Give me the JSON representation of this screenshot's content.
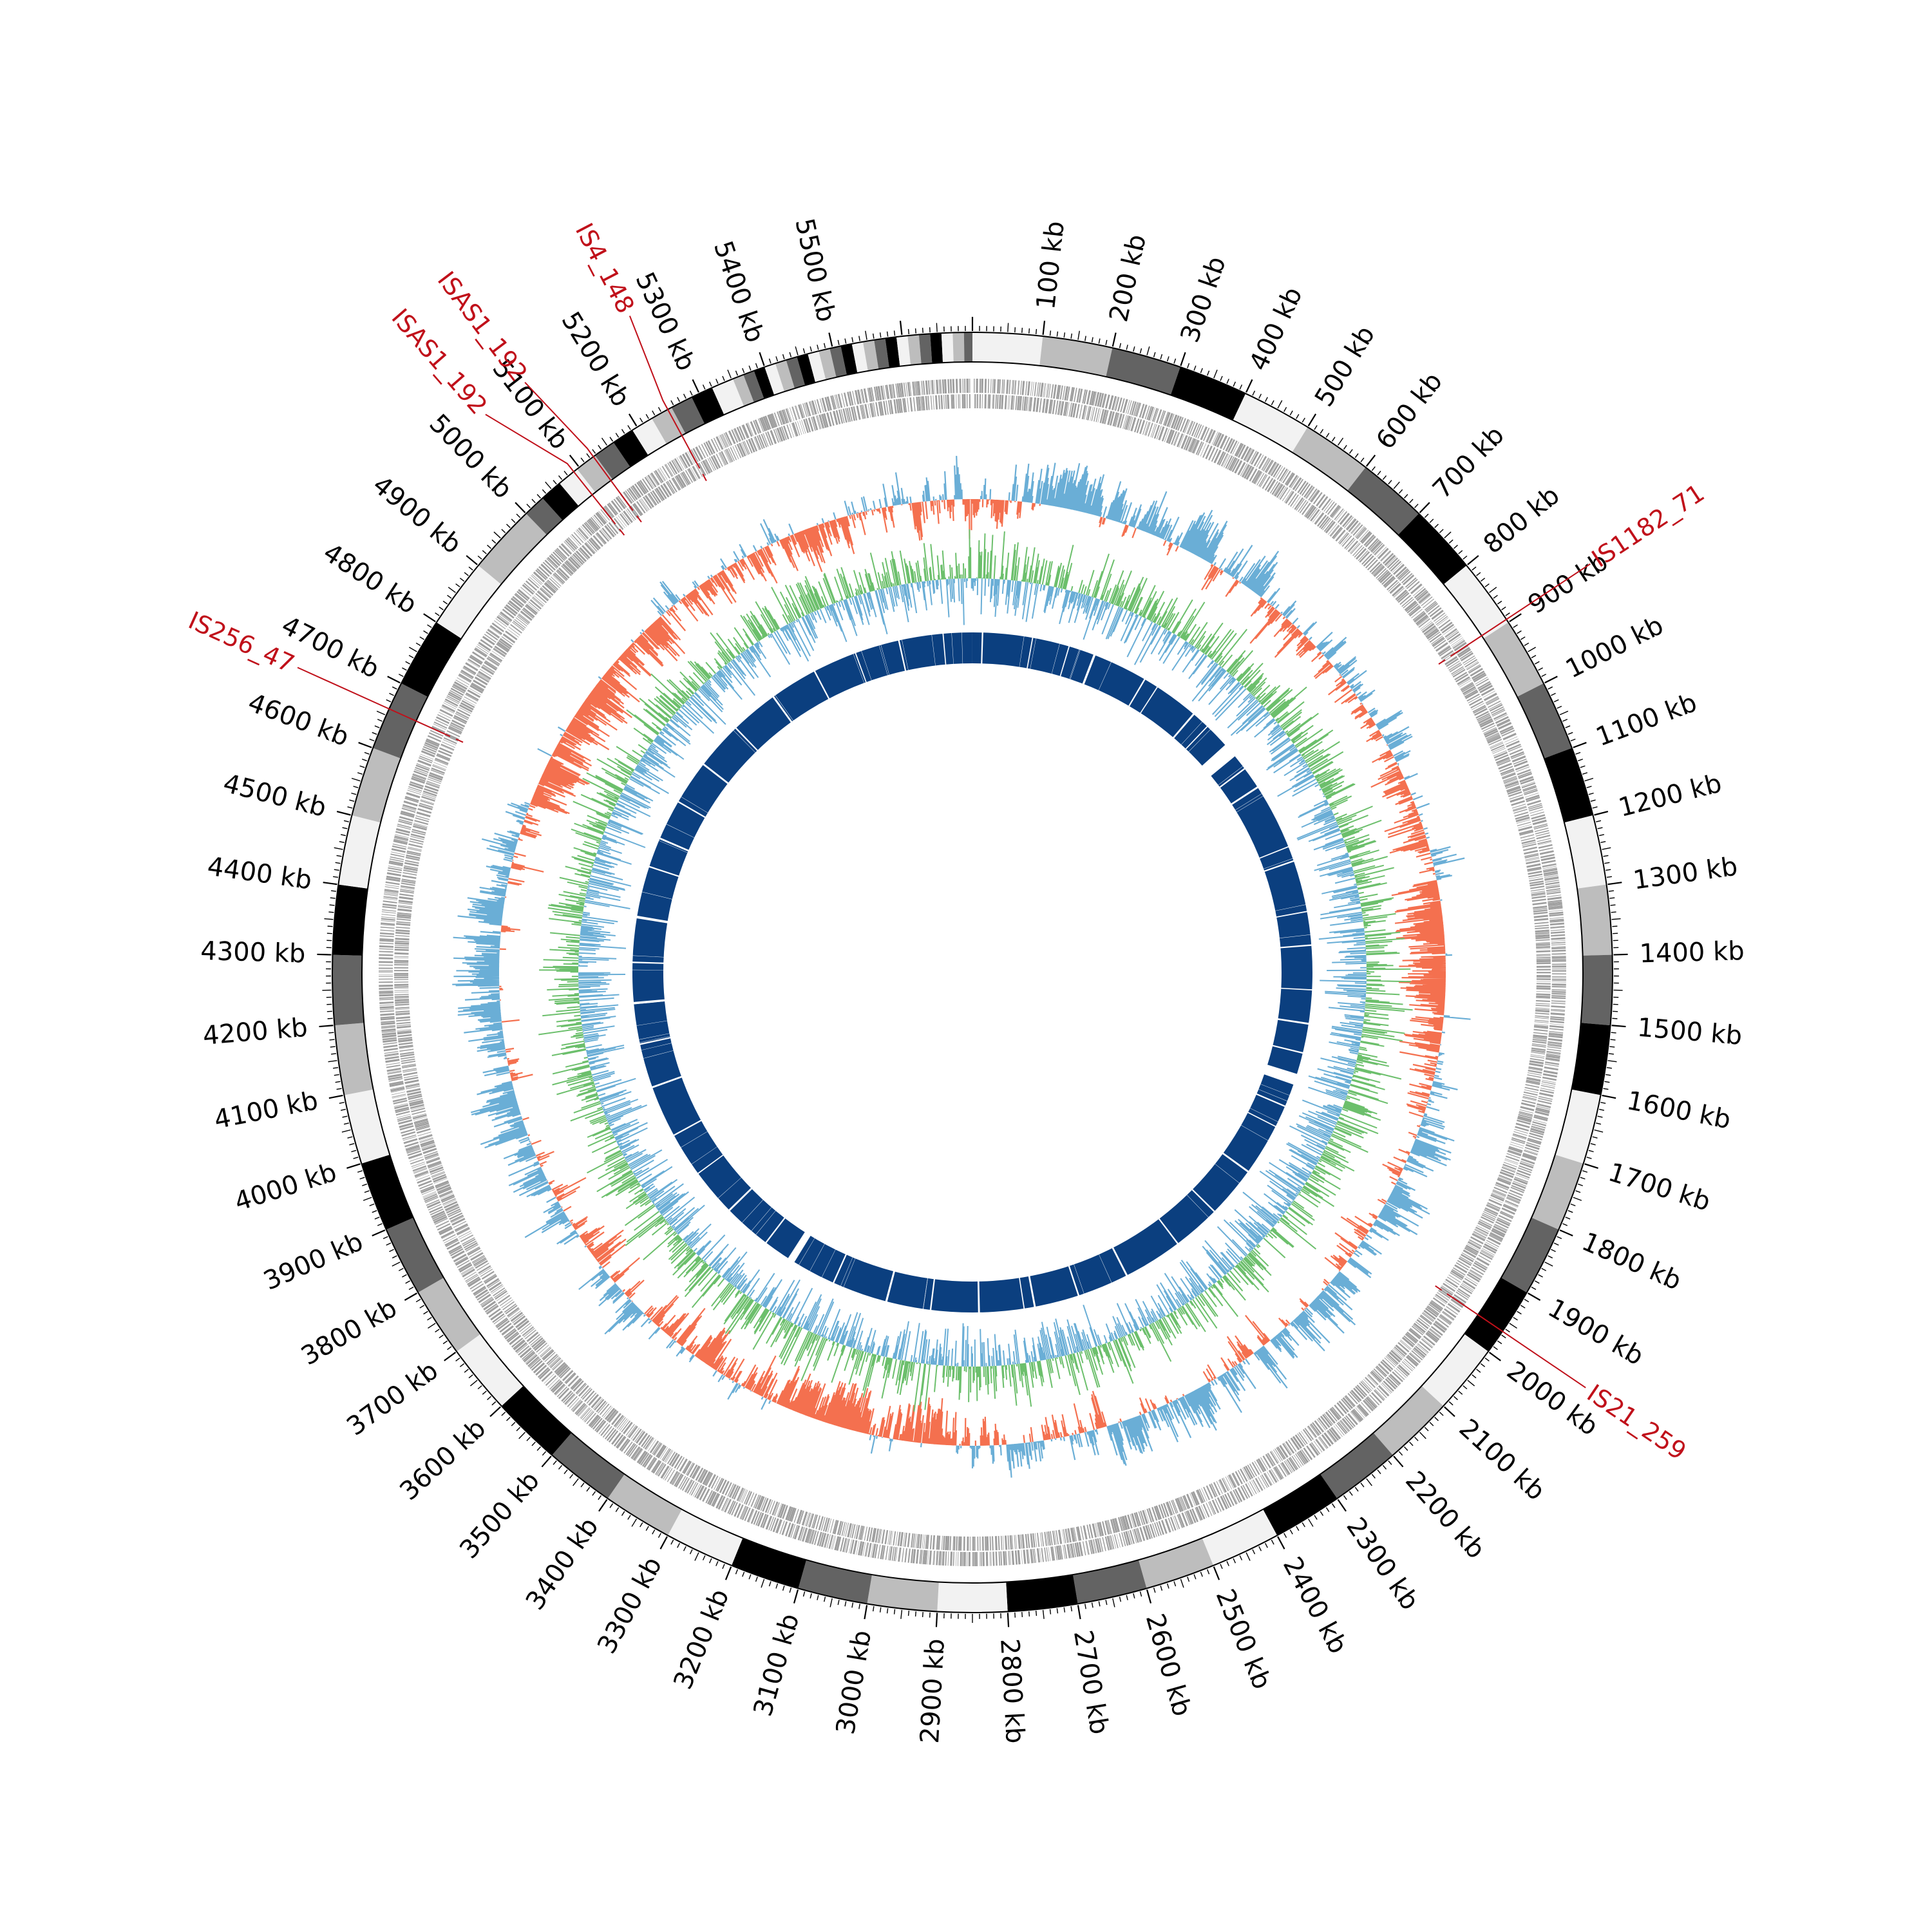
{
  "genome": {
    "length_kb": 5700,
    "tick_label_unit": "kb",
    "label_step_kb": 100
  },
  "tick_labels": [
    "100 kb",
    "200 kb",
    "300 kb",
    "400 kb",
    "500 kb",
    "600 kb",
    "700 kb",
    "800 kb",
    "900 kb",
    "1000 kb",
    "1100 kb",
    "1200 kb",
    "1300 kb",
    "1400 kb",
    "1500 kb",
    "1600 kb",
    "1700 kb",
    "1800 kb",
    "1900 kb",
    "2000 kb",
    "2100 kb",
    "2200 kb",
    "2300 kb",
    "2400 kb",
    "2500 kb",
    "2600 kb",
    "2700 kb",
    "2800 kb",
    "2900 kb",
    "3000 kb",
    "3100 kb",
    "3200 kb",
    "3300 kb",
    "3400 kb",
    "3500 kb",
    "3600 kb",
    "3700 kb",
    "3800 kb",
    "3900 kb",
    "4000 kb",
    "4100 kb",
    "4200 kb",
    "4300 kb",
    "4400 kb",
    "4500 kb",
    "4600 kb",
    "4700 kb",
    "4800 kb",
    "4900 kb",
    "5000 kb",
    "5100 kb",
    "5200 kb",
    "5300 kb",
    "5400 kb",
    "5500 kb"
  ],
  "insertion_sequences": [
    {
      "label": "IS1182_71",
      "position_kb": 895
    },
    {
      "label": "IS21_259",
      "position_kb": 1965
    },
    {
      "label": "IS256_47",
      "position_kb": 4660
    },
    {
      "label": "ISAS1_192",
      "position_kb": 5090
    },
    {
      "label": "ISAS1_192",
      "position_kb": 5125
    },
    {
      "label": "IS4_148",
      "position_kb": 5250
    }
  ],
  "colors": {
    "insertion_label": "#c0101a",
    "gene_track": "#9e9e9e",
    "gc_skew_positive": "#6aaed6",
    "gc_skew_negative": "#f4704f",
    "gc_content": "#6cbf6c",
    "inner_blocks": "#0b3f7f",
    "ideogram_bands": [
      "#f2f2f2",
      "#bdbdbd",
      "#636363",
      "#000000"
    ]
  }
}
